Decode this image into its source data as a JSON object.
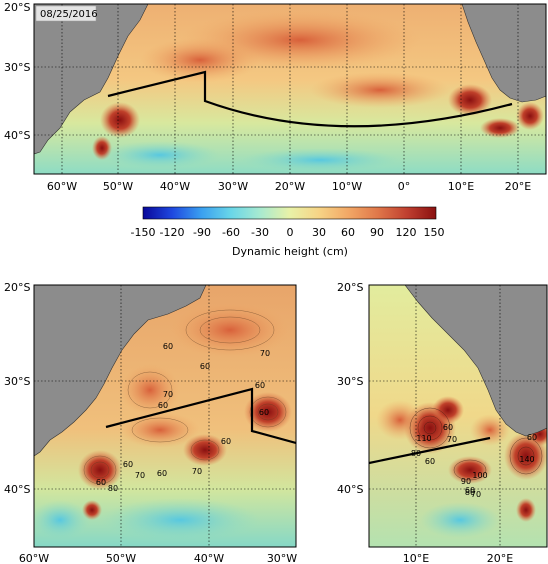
{
  "date": "08/25/2016",
  "colorbar": {
    "title": "Dynamic height (cm)",
    "ticks": [
      "-150",
      "-120",
      "-90",
      "-60",
      "-30",
      "0",
      "30",
      "60",
      "90",
      "120",
      "150"
    ],
    "colors": [
      "#08089a",
      "#1f48e0",
      "#3aa0f0",
      "#69d6e8",
      "#a8ead0",
      "#e8f2a8",
      "#f6d486",
      "#f2a866",
      "#e0784a",
      "#c04030",
      "#8a1010"
    ]
  },
  "colors": {
    "land": "#8c8c8c",
    "ocean_low": "#74d4bc",
    "ocean_mid": "#d8ec9c",
    "ocean_high": "#f2b46c",
    "eddy": "#a52a1a"
  },
  "top_map": {
    "lat_labels": [
      "20°S",
      "30°S",
      "40°S"
    ],
    "lon_labels": [
      "60°W",
      "50°W",
      "40°W",
      "30°W",
      "20°W",
      "10°W",
      "0°",
      "10°E",
      "20°E"
    ]
  },
  "left_map": {
    "lat_labels": [
      "20°S",
      "30°S",
      "40°S"
    ],
    "lon_labels": [
      "60°W",
      "50°W",
      "40°W",
      "30°W"
    ],
    "contour_labels": [
      "60",
      "60",
      "70",
      "60",
      "70",
      "60",
      "60",
      "60",
      "60",
      "70",
      "60",
      "70",
      "80",
      "60"
    ]
  },
  "right_map": {
    "lat_labels": [
      "20°S",
      "30°S",
      "40°S"
    ],
    "lon_labels": [
      "10°E",
      "20°E"
    ],
    "contour_labels": [
      "110",
      "60",
      "70",
      "60",
      "80",
      "100",
      "90",
      "60",
      "80",
      "70",
      "140",
      "60"
    ]
  }
}
